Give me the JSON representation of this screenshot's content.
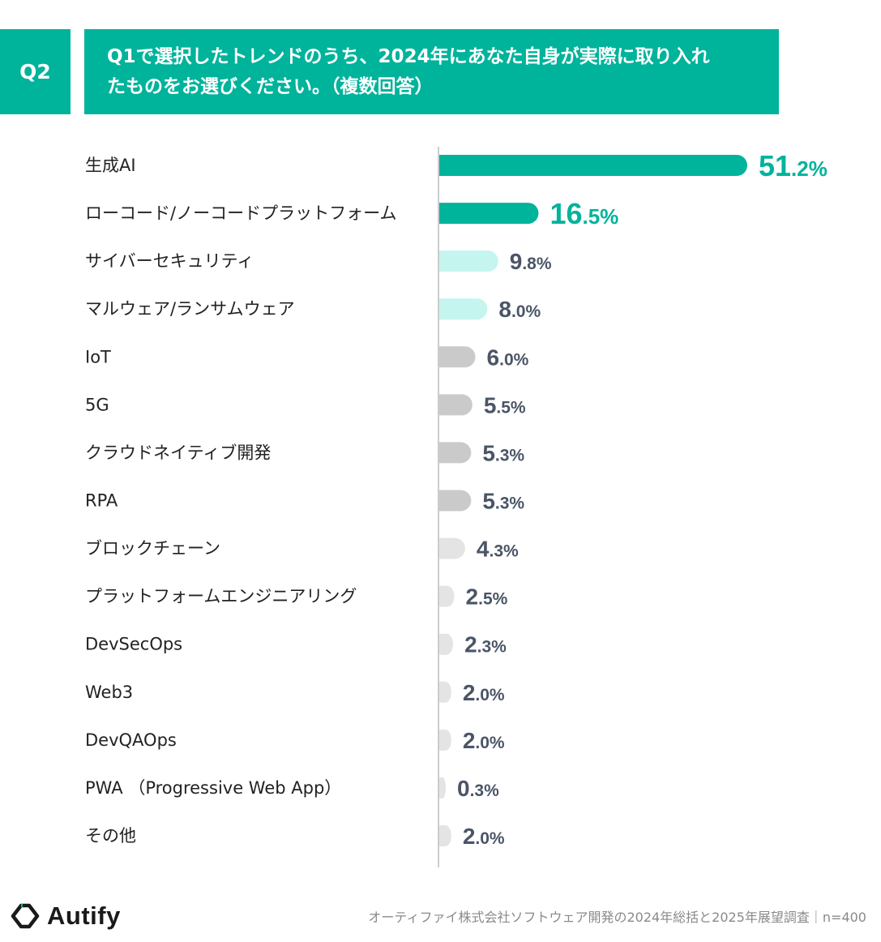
{
  "question": {
    "badge": "Q2",
    "line1": "Q1で選択したトレンドのうち、2024年にあなた自身が実際に取り入れ",
    "line2": "たものをお選びください。（複数回答）"
  },
  "chart_data": {
    "type": "bar",
    "orientation": "horizontal",
    "title": "Q1で選択したトレンドのうち、2024年にあなた自身が実際に取り入れたものをお選びください。（複数回答）",
    "categories": [
      "生成AI",
      "ローコード/ノーコードプラットフォーム",
      "サイバーセキュリティ",
      "マルウェア/ランサムウェア",
      "IoT",
      "5G",
      "クラウドネイティブ開発",
      "RPA",
      "ブロックチェーン",
      "プラットフォームエンジニアリング",
      "DevSecOps",
      "Web3",
      "DevQAOps",
      "PWA （Progressive Web App）",
      "その他"
    ],
    "values": [
      51.2,
      16.5,
      9.8,
      8.0,
      6.0,
      5.5,
      5.3,
      5.3,
      4.3,
      2.5,
      2.3,
      2.0,
      2.0,
      0.3,
      2.0
    ],
    "value_labels": [
      {
        "int": "51",
        "dec": ".2%"
      },
      {
        "int": "16",
        "dec": ".5%"
      },
      {
        "int": "9",
        "dec": ".8%"
      },
      {
        "int": "8",
        "dec": ".0%"
      },
      {
        "int": "6",
        "dec": ".0%"
      },
      {
        "int": "5",
        "dec": ".5%"
      },
      {
        "int": "5",
        "dec": ".3%"
      },
      {
        "int": "5",
        "dec": ".3%"
      },
      {
        "int": "4",
        "dec": ".3%"
      },
      {
        "int": "2",
        "dec": ".5%"
      },
      {
        "int": "2",
        "dec": ".3%"
      },
      {
        "int": "2",
        "dec": ".0%"
      },
      {
        "int": "2",
        "dec": ".0%"
      },
      {
        "int": "0",
        "dec": ".3%"
      },
      {
        "int": "2",
        "dec": ".0%"
      }
    ],
    "xlim": [
      0,
      51.2
    ],
    "unit": "%",
    "colors": {
      "top": "#00b39b",
      "mid": "#c4f5ee",
      "gray": "#cacaca",
      "light": "#e4e4e4",
      "label_top": "#00b39b",
      "label_other": "#4a5566",
      "axis": "#9a9a9a"
    },
    "color_groups": [
      "top",
      "top",
      "mid",
      "mid",
      "gray",
      "gray",
      "gray",
      "gray",
      "light",
      "light",
      "light",
      "light",
      "light",
      "light",
      "light"
    ]
  },
  "logo": {
    "name": "Autify"
  },
  "footer": {
    "source": "オーティファイ株式会社ソフトウェア開発の2024年総括と2025年展望調査｜n=400"
  }
}
